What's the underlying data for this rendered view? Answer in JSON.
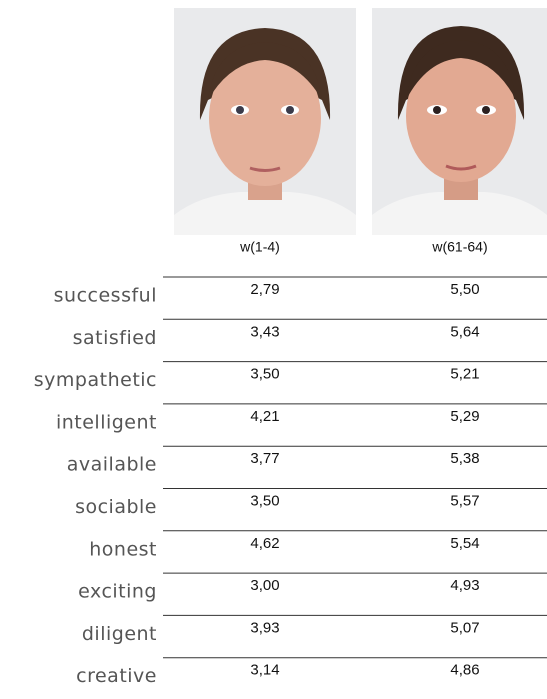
{
  "table": {
    "columns": [
      "w(1-4)",
      "w(61-64)"
    ],
    "rows": [
      [
        "successful",
        "2,79",
        "5,50"
      ],
      [
        "satisfied",
        "3,43",
        "5,64"
      ],
      [
        "sympathetic",
        "3,50",
        "5,21"
      ],
      [
        "intelligent",
        "4,21",
        "5,29"
      ],
      [
        "available",
        "3,77",
        "5,38"
      ],
      [
        "sociable",
        "3,50",
        "5,57"
      ],
      [
        "honest",
        "4,62",
        "5,54"
      ],
      [
        "exciting",
        "3,00",
        "4,93"
      ],
      [
        "diligent",
        "3,93",
        "5,07"
      ],
      [
        "creative",
        "3,14",
        "4,86"
      ]
    ]
  }
}
